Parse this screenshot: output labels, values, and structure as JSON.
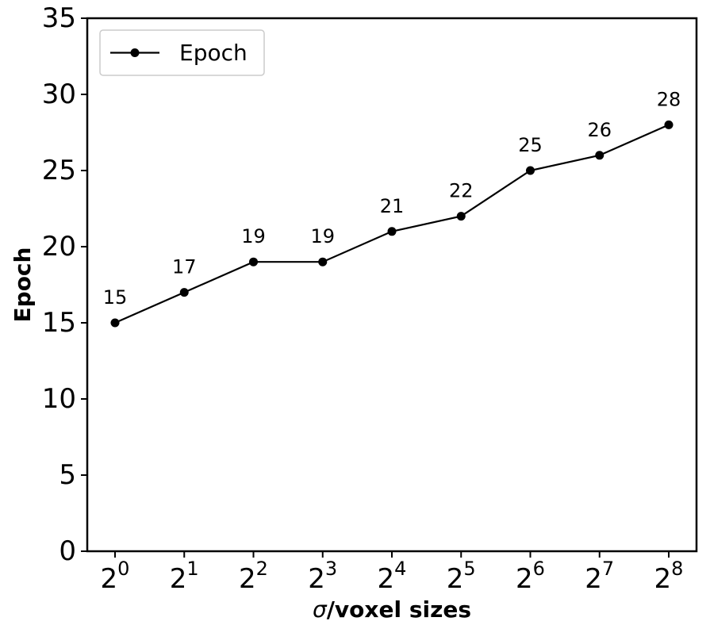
{
  "chart_data": {
    "type": "line",
    "title": "",
    "xlabel": "σ/voxel sizes",
    "xlabel_parts": {
      "symbol": "σ",
      "text": "/voxel sizes"
    },
    "ylabel": "Epoch",
    "x_tick_labels": [
      {
        "base": "2",
        "exp": "0"
      },
      {
        "base": "2",
        "exp": "1"
      },
      {
        "base": "2",
        "exp": "2"
      },
      {
        "base": "2",
        "exp": "3"
      },
      {
        "base": "2",
        "exp": "4"
      },
      {
        "base": "2",
        "exp": "5"
      },
      {
        "base": "2",
        "exp": "6"
      },
      {
        "base": "2",
        "exp": "7"
      },
      {
        "base": "2",
        "exp": "8"
      }
    ],
    "x_scale": "log2",
    "x": [
      1,
      2,
      4,
      8,
      16,
      32,
      64,
      128,
      256
    ],
    "y_ticks": [
      0,
      5,
      10,
      15,
      20,
      25,
      30,
      35
    ],
    "ylim": [
      0,
      35
    ],
    "grid": false,
    "legend_position": "top-left",
    "series": [
      {
        "name": "Epoch",
        "values": [
          15,
          17,
          19,
          19,
          21,
          22,
          25,
          26,
          28
        ],
        "color": "#000000",
        "marker": "circle",
        "data_labels": [
          "15",
          "17",
          "19",
          "19",
          "21",
          "22",
          "25",
          "26",
          "28"
        ]
      }
    ]
  }
}
